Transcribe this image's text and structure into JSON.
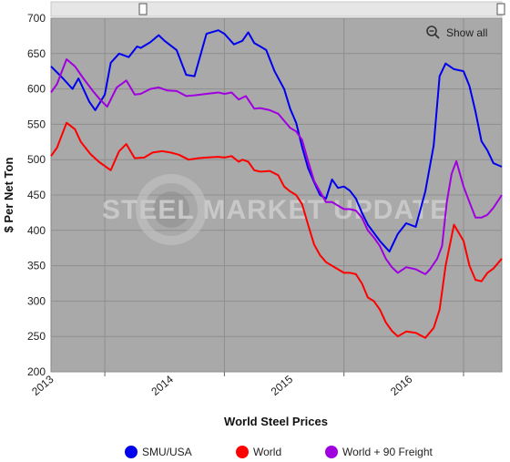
{
  "chart_data": {
    "type": "line",
    "xlabel": "World Steel Prices",
    "ylabel": "$ Per Net Ton",
    "ylim": [
      200,
      700
    ],
    "yticks": [
      200,
      250,
      300,
      350,
      400,
      450,
      500,
      550,
      600,
      650,
      700
    ],
    "xlim": [
      2012.55,
      2016.32
    ],
    "xticks": [
      {
        "label": "2013",
        "value": 2013.0
      },
      {
        "label": "2014",
        "value": 2014.0
      },
      {
        "label": "2015",
        "value": 2015.0
      },
      {
        "label": "2016",
        "value": 2016.0
      }
    ],
    "grid": true,
    "legend_position": "bottom",
    "watermark": "STEEL MARKET UPDATE",
    "show_all_label": "Show all",
    "series": [
      {
        "name": "SMU/USA",
        "color": "#0000ee",
        "x": [
          2012.55,
          2012.65,
          2012.73,
          2012.78,
          2012.87,
          2012.92,
          2013.0,
          2013.05,
          2013.12,
          2013.2,
          2013.27,
          2013.3,
          2013.38,
          2013.45,
          2013.5,
          2013.6,
          2013.68,
          2013.75,
          2013.85,
          2013.95,
          2014.0,
          2014.08,
          2014.15,
          2014.2,
          2014.25,
          2014.3,
          2014.35,
          2014.42,
          2014.5,
          2014.55,
          2014.6,
          2014.65,
          2014.7,
          2014.75,
          2014.8,
          2014.85,
          2014.9,
          2014.95,
          2015.0,
          2015.05,
          2015.1,
          2015.15,
          2015.2,
          2015.3,
          2015.38,
          2015.45,
          2015.52,
          2015.6,
          2015.68,
          2015.75,
          2015.8,
          2015.85,
          2015.92,
          2016.0,
          2016.05,
          2016.1,
          2016.15,
          2016.2,
          2016.25,
          2016.32
        ],
        "values": [
          632,
          615,
          600,
          615,
          582,
          570,
          592,
          637,
          650,
          645,
          660,
          658,
          666,
          676,
          668,
          655,
          620,
          618,
          678,
          683,
          678,
          663,
          668,
          680,
          665,
          660,
          655,
          625,
          600,
          572,
          552,
          518,
          488,
          468,
          450,
          445,
          472,
          460,
          462,
          456,
          445,
          425,
          408,
          385,
          370,
          395,
          410,
          405,
          455,
          520,
          618,
          636,
          628,
          625,
          604,
          568,
          526,
          513,
          495,
          490
        ]
      },
      {
        "name": "World",
        "color": "#ff0000",
        "x": [
          2012.55,
          2012.6,
          2012.68,
          2012.75,
          2012.8,
          2012.88,
          2012.95,
          2013.05,
          2013.12,
          2013.18,
          2013.25,
          2013.33,
          2013.4,
          2013.48,
          2013.55,
          2013.62,
          2013.7,
          2013.78,
          2013.85,
          2013.95,
          2014.0,
          2014.06,
          2014.12,
          2014.15,
          2014.2,
          2014.25,
          2014.3,
          2014.38,
          2014.45,
          2014.5,
          2014.55,
          2014.6,
          2014.65,
          2014.7,
          2014.75,
          2014.8,
          2014.85,
          2014.9,
          2014.95,
          2015.0,
          2015.05,
          2015.1,
          2015.15,
          2015.2,
          2015.25,
          2015.3,
          2015.35,
          2015.4,
          2015.45,
          2015.52,
          2015.6,
          2015.68,
          2015.75,
          2015.8,
          2015.85,
          2015.92,
          2016.0,
          2016.05,
          2016.1,
          2016.15,
          2016.2,
          2016.25,
          2016.32
        ],
        "values": [
          505,
          517,
          552,
          543,
          525,
          508,
          497,
          485,
          512,
          522,
          502,
          503,
          510,
          512,
          510,
          507,
          500,
          502,
          503,
          504,
          503,
          505,
          497,
          500,
          497,
          485,
          483,
          484,
          478,
          462,
          455,
          450,
          437,
          408,
          380,
          365,
          355,
          350,
          345,
          340,
          340,
          338,
          325,
          305,
          300,
          288,
          270,
          258,
          250,
          257,
          255,
          248,
          262,
          288,
          350,
          408,
          385,
          350,
          330,
          328,
          340,
          346,
          360
        ]
      },
      {
        "name": "World + 90 Freight",
        "color": "#a000e0",
        "x": [
          2012.55,
          2012.6,
          2012.68,
          2012.75,
          2012.82,
          2012.9,
          2012.96,
          2013.02,
          2013.1,
          2013.18,
          2013.25,
          2013.3,
          2013.38,
          2013.45,
          2013.52,
          2013.6,
          2013.68,
          2013.75,
          2013.85,
          2013.95,
          2014.0,
          2014.06,
          2014.12,
          2014.18,
          2014.25,
          2014.3,
          2014.38,
          2014.45,
          2014.5,
          2014.55,
          2014.6,
          2014.65,
          2014.7,
          2014.75,
          2014.8,
          2014.85,
          2014.9,
          2014.95,
          2015.0,
          2015.05,
          2015.1,
          2015.15,
          2015.2,
          2015.25,
          2015.3,
          2015.35,
          2015.4,
          2015.45,
          2015.52,
          2015.6,
          2015.68,
          2015.72,
          2015.78,
          2015.82,
          2015.86,
          2015.9,
          2015.94,
          2016.0,
          2016.05,
          2016.1,
          2016.15,
          2016.2,
          2016.25,
          2016.32
        ],
        "values": [
          595,
          607,
          642,
          632,
          615,
          597,
          585,
          575,
          602,
          612,
          592,
          593,
          600,
          602,
          598,
          597,
          590,
          591,
          593,
          595,
          593,
          595,
          585,
          590,
          572,
          573,
          570,
          565,
          555,
          545,
          540,
          528,
          498,
          470,
          455,
          440,
          440,
          435,
          430,
          430,
          428,
          418,
          400,
          390,
          378,
          360,
          348,
          340,
          348,
          345,
          338,
          345,
          360,
          378,
          440,
          480,
          498,
          462,
          440,
          418,
          418,
          422,
          432,
          450
        ]
      }
    ]
  }
}
